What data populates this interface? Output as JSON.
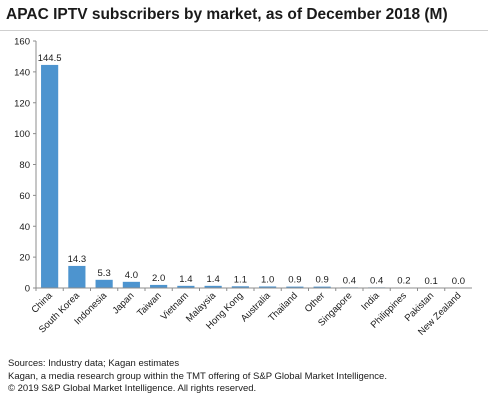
{
  "title": "APAC IPTV subscribers by market, as of December 2018 (M)",
  "colors": {
    "bar": "#4d94cf",
    "axis": "#8c8c8c",
    "grid": "#dddddd",
    "text": "#1a1a1a"
  },
  "chart_data": {
    "type": "bar",
    "title": "APAC IPTV subscribers by market, as of December 2018 (M)",
    "categories": [
      "China",
      "South Korea",
      "Indonesia",
      "Japan",
      "Taiwan",
      "Vietnam",
      "Malaysia",
      "Hong Kong",
      "Australia",
      "Thailand",
      "Other",
      "Singapore",
      "India",
      "Philippines",
      "Pakistan",
      "New Zealand"
    ],
    "values": [
      144.5,
      14.3,
      5.3,
      4.0,
      2.0,
      1.4,
      1.4,
      1.1,
      1.0,
      0.9,
      0.9,
      0.4,
      0.4,
      0.2,
      0.1,
      0.0
    ],
    "value_labels": [
      "144.5",
      "14.3",
      "5.3",
      "4.0",
      "2.0",
      "1.4",
      "1.4",
      "1.1",
      "1.0",
      "0.9",
      "0.9",
      "0.4",
      "0.4",
      "0.2",
      "0.1",
      "0.0"
    ],
    "yticks": [
      0,
      20,
      40,
      60,
      80,
      100,
      120,
      140,
      160
    ],
    "ylim": [
      0,
      160
    ],
    "xlabel": "",
    "ylabel": "",
    "grid": false,
    "legend": "none"
  },
  "footer": {
    "sources": "Sources: Industry data; Kagan estimates",
    "kagan": "Kagan, a media research group within the TMT offering of S&P Global Market Intelligence.",
    "copyright": "© 2019 S&P Global Market Intelligence. All rights reserved."
  }
}
